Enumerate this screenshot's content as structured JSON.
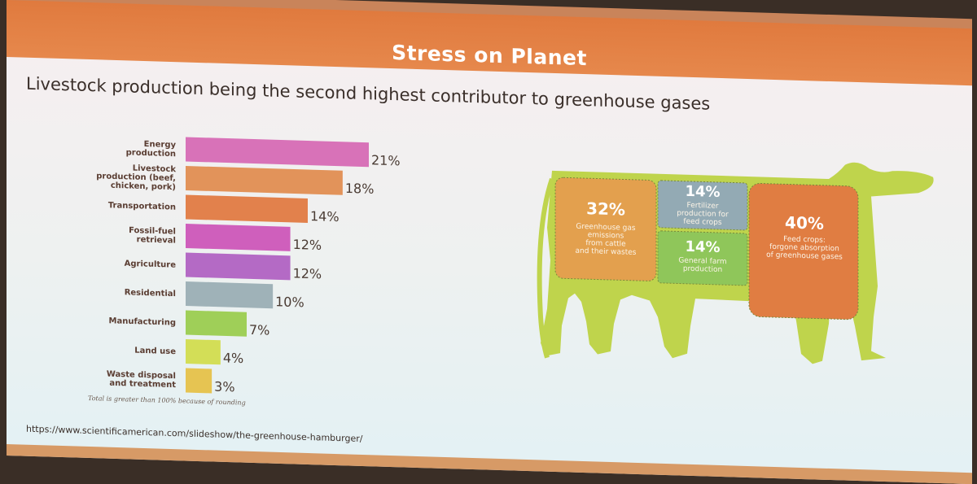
{
  "title": "Stress on Planet",
  "subtitle": "Livestock production being the second highest contributor to greenhouse gases",
  "chart_data": {
    "type": "bar",
    "orientation": "horizontal",
    "categories": [
      "Energy production",
      "Livestock production (beef, chicken, pork)",
      "Transportation",
      "Fossil-fuel retrieval",
      "Agriculture",
      "Residential",
      "Manufacturing",
      "Land use",
      "Waste disposal and treatment"
    ],
    "category_lines": [
      [
        "Energy",
        "production"
      ],
      [
        "Livestock",
        "production (beef,",
        "chicken, pork)"
      ],
      [
        "Transportation"
      ],
      [
        "Fossil-fuel",
        "retrieval"
      ],
      [
        "Agriculture"
      ],
      [
        "Residential"
      ],
      [
        "Manufacturing"
      ],
      [
        "Land use"
      ],
      [
        "Waste disposal",
        "and treatment"
      ]
    ],
    "values": [
      21,
      18,
      14,
      12,
      12,
      10,
      7,
      4,
      3
    ],
    "value_labels": [
      "21%",
      "18%",
      "14%",
      "12%",
      "12%",
      "10%",
      "7%",
      "4%",
      "3%"
    ],
    "colors": [
      "#d872b8",
      "#e2935a",
      "#e2814c",
      "#cf5fbc",
      "#b46ac5",
      "#9fb2b8",
      "#9fcf58",
      "#d3de57",
      "#e6c452"
    ],
    "xlim": [
      0,
      21
    ],
    "grid": false,
    "legend": "none",
    "footnote": "Total is greater than 100% because of rounding"
  },
  "cow_diagram": {
    "segments": [
      {
        "percent": "32%",
        "description": [
          "Greenhouse gas",
          "emissions",
          "from cattle",
          "and their wastes"
        ],
        "color": "#e3a04e"
      },
      {
        "percent": "14%",
        "description": [
          "Fertilizer",
          "production for",
          "feed crops"
        ],
        "color": "#93aab4"
      },
      {
        "percent": "14%",
        "description": [
          "General farm",
          "production"
        ],
        "color": "#8fc65a"
      },
      {
        "percent": "40%",
        "description": [
          "Feed crops:",
          "forgone absorption",
          "of greenhouse gases"
        ],
        "color": "#e07d42"
      }
    ],
    "body_color": "#bfd44c"
  },
  "source_url": "https://www.scientificamerican.com/slideshow/the-greenhouse-hamburger/"
}
